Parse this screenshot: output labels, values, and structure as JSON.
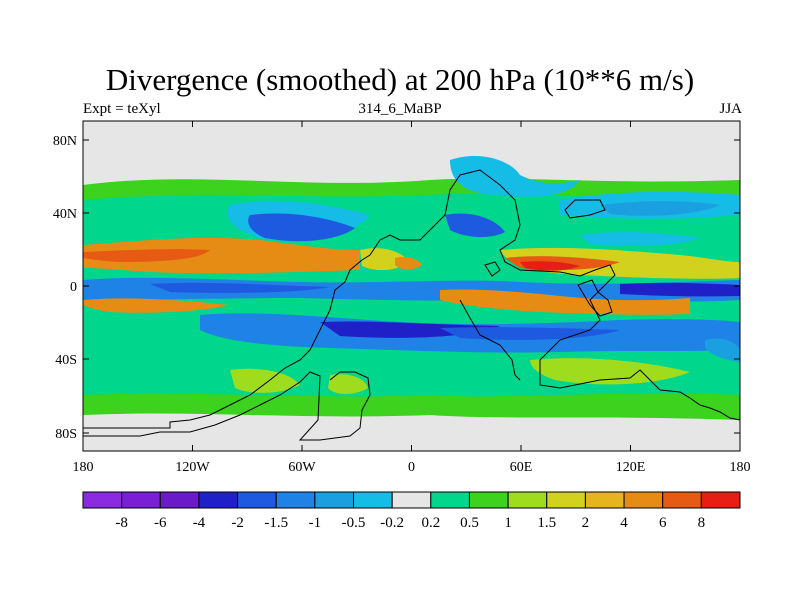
{
  "title": "Divergence (smoothed) at 200 hPa (10**6 m/s)",
  "subtitle_left": "Expt = teXyl",
  "subtitle_center": "314_6_MaBP",
  "subtitle_right": "JJA",
  "y_ticks": [
    "80N",
    "40N",
    "0",
    "40S",
    "80S"
  ],
  "x_ticks": [
    "180",
    "120W",
    "60W",
    "0",
    "60E",
    "120E",
    "180"
  ],
  "colorbar": {
    "colors": [
      "#8a2be2",
      "#7a1fd6",
      "#6a1ac8",
      "#2020c8",
      "#1e5ae0",
      "#1e82e6",
      "#1aa0e0",
      "#14bce6",
      "#e6e6e6",
      "#00d68c",
      "#3cd21e",
      "#a0dc1e",
      "#d2d21e",
      "#e6b41e",
      "#e68c14",
      "#e65a14",
      "#e61e14"
    ],
    "labels": [
      "-8",
      "-6",
      "-4",
      "-2",
      "-1.5",
      "-1",
      "-0.5",
      "-0.2",
      "0.2",
      "0.5",
      "1",
      "1.5",
      "2",
      "4",
      "6",
      "8"
    ]
  },
  "colors": {
    "neutral": "#e6e6e6",
    "green": "#3cd21e",
    "lightgreen": "#00d68c",
    "yellowgreen": "#a0dc1e",
    "yellow": "#d2d21e",
    "orange": "#e68c14",
    "red": "#e65a14",
    "darkred": "#e61e14",
    "lightblue": "#14bce6",
    "midblue": "#1aa0e0",
    "blue": "#1e82e6",
    "deepblue": "#1e5ae0",
    "navy": "#2020c8"
  }
}
